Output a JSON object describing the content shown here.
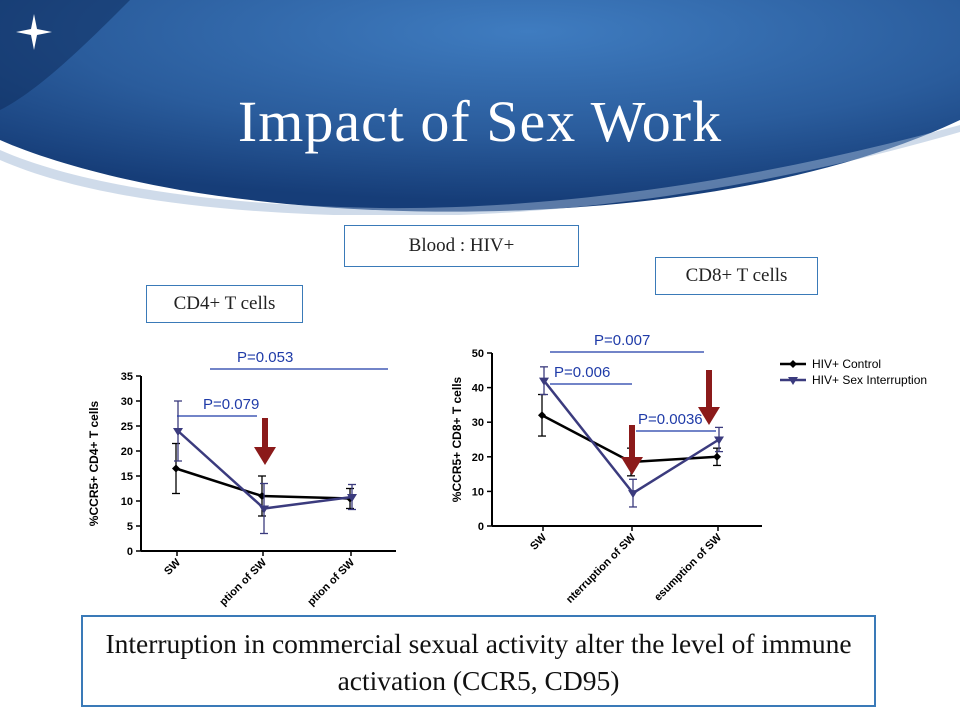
{
  "slide": {
    "title": "Impact of Sex Work",
    "blood_label": "Blood : HIV+",
    "bottom_text": "Interruption in commercial sexual activity alter the level of immune activation (CCR5, CD95)"
  },
  "colors": {
    "header_dark": "#163d78",
    "header_light": "#3a76b8",
    "control": "#000000",
    "interruption": "#3b3b7e",
    "arrow": "#8b1a1a",
    "pvalue": "#1f3ba8"
  },
  "chart_data": [
    {
      "type": "line",
      "panel_label": "CD4+ T cells",
      "categories": [
        "SW",
        "Interruption of SW",
        "Resumption of SW"
      ],
      "visible_tick_labels": [
        "SW",
        "ption of SW",
        "ption of SW"
      ],
      "ylabel": "%CCR5+ CD4+ T cells",
      "ylim": [
        0,
        35
      ],
      "yticks": [
        0,
        5,
        10,
        15,
        20,
        25,
        30,
        35
      ],
      "series": [
        {
          "name": "HIV+ Control",
          "values": [
            16.5,
            11,
            10.5
          ],
          "err": [
            5,
            4,
            2
          ]
        },
        {
          "name": "HIV+ Sex Interruption",
          "values": [
            24,
            8.5,
            10.8
          ],
          "err": [
            6,
            5,
            2.5
          ]
        }
      ],
      "annotations": [
        {
          "text": "P=0.079",
          "from": 0,
          "to": 1
        },
        {
          "text": "P=0.053",
          "from": 0,
          "to": 2
        }
      ]
    },
    {
      "type": "line",
      "panel_label": "CD8+ T cells",
      "categories": [
        "SW",
        "Interruption of SW",
        "Resumption of SW"
      ],
      "visible_tick_labels": [
        "SW",
        "nterruption of SW",
        "esumption of SW"
      ],
      "ylabel": "%CCR5+ CD8+ T cells",
      "ylim": [
        0,
        50
      ],
      "yticks": [
        0,
        10,
        20,
        30,
        40,
        50
      ],
      "legend_position": "right",
      "series": [
        {
          "name": "HIV+ Control",
          "values": [
            32,
            18.5,
            20
          ],
          "err": [
            6,
            4,
            2.5
          ]
        },
        {
          "name": "HIV+ Sex Interruption",
          "values": [
            42,
            9.5,
            25
          ],
          "err": [
            4,
            4,
            3.5
          ]
        }
      ],
      "annotations": [
        {
          "text": "P=0.006",
          "from": 0,
          "to": 1
        },
        {
          "text": "P=0.007",
          "from": 0,
          "to": 1
        },
        {
          "text": "P=0.0036",
          "from": 1,
          "to": 2
        }
      ]
    }
  ]
}
